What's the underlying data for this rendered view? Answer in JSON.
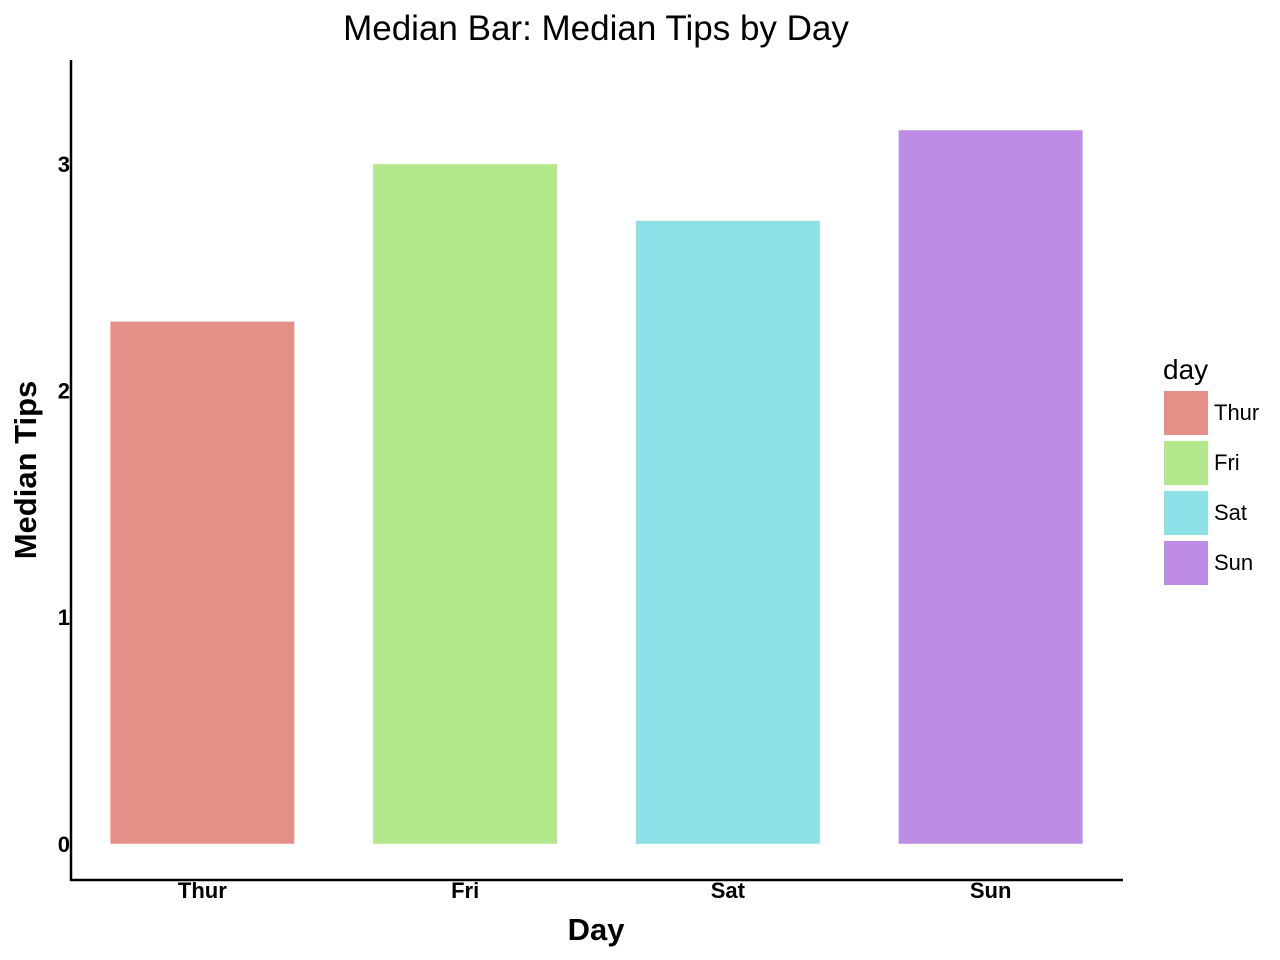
{
  "chart_data": {
    "type": "bar",
    "title": "Median Bar: Median Tips by Day",
    "xlabel": "Day",
    "ylabel": "Median Tips",
    "categories": [
      "Thur",
      "Fri",
      "Sat",
      "Sun"
    ],
    "values": [
      2.305,
      3.0,
      2.75,
      3.15
    ],
    "colors": [
      "#e58f89",
      "#b3e78b",
      "#8de0e5",
      "#bd8ce5"
    ],
    "ylim": [
      -0.16,
      3.46
    ],
    "yticks": [
      0,
      1,
      2,
      3
    ],
    "grid": false,
    "legend": {
      "title": "day",
      "position": "right",
      "entries": [
        "Thur",
        "Fri",
        "Sat",
        "Sun"
      ]
    }
  }
}
